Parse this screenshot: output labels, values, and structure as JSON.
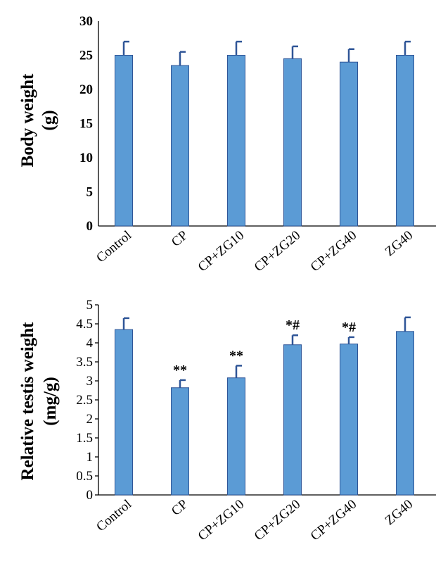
{
  "chart_data": [
    {
      "type": "bar",
      "categories": [
        "Control",
        "CP",
        "CP+ZG10",
        "CP+ZG20",
        "CP+ZG40",
        "ZG40"
      ],
      "values": [
        25,
        23.5,
        25,
        24.5,
        24,
        25
      ],
      "errors": [
        2,
        2,
        2,
        1.8,
        1.9,
        2
      ],
      "annotations": [
        "",
        "",
        "",
        "",
        "",
        ""
      ],
      "ylabel_line1": "Body weight",
      "ylabel_line2": "(g)",
      "ylim": [
        0,
        30
      ],
      "yticks": [
        "0",
        "5",
        "10",
        "15",
        "20",
        "25",
        "30"
      ],
      "grid": false,
      "bar_color": "#5B9BD5"
    },
    {
      "type": "bar",
      "categories": [
        "Control",
        "CP",
        "CP+ZG10",
        "CP+ZG20",
        "CP+ZG40",
        "ZG40"
      ],
      "values": [
        4.35,
        2.82,
        3.08,
        3.95,
        3.97,
        4.3
      ],
      "errors": [
        0.3,
        0.2,
        0.32,
        0.25,
        0.18,
        0.37
      ],
      "annotations": [
        "",
        "**",
        "**",
        "*#",
        "*#",
        ""
      ],
      "ylabel_line1": "Relative testis weight",
      "ylabel_line2": "(mg/g)",
      "ylim": [
        0,
        5
      ],
      "yticks": [
        "0",
        "0.5",
        "1",
        "1.5",
        "2",
        "2.5",
        "3",
        "3.5",
        "4",
        "4.5",
        "5"
      ],
      "grid": false,
      "bar_color": "#5B9BD5"
    }
  ]
}
